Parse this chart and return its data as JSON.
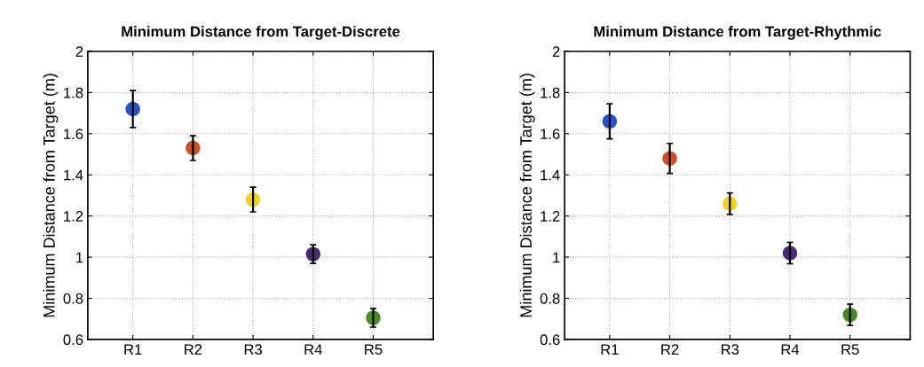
{
  "chart_data": [
    {
      "type": "scatter",
      "title": "Minimum Distance from Target-Discrete",
      "ylabel": "Minimum Distance from Target (m)",
      "categories": [
        "R1",
        "R2",
        "R3",
        "R4",
        "R5"
      ],
      "values": [
        1.72,
        1.53,
        1.28,
        1.015,
        0.705
      ],
      "errors": [
        0.09,
        0.06,
        0.06,
        0.045,
        0.045
      ],
      "colors": [
        "#2a50c0",
        "#c8502a",
        "#f2d22a",
        "#4a2a70",
        "#4a8a2a"
      ],
      "ylim": [
        0.6,
        2
      ],
      "yticks": [
        0.6,
        0.8,
        1,
        1.2,
        1.4,
        1.6,
        1.8,
        2
      ],
      "grid": true,
      "marker": "circle"
    },
    {
      "type": "scatter",
      "title": "Minimum Distance from Target-Rhythmic",
      "ylabel": "Minimum Distance from Target (m)",
      "categories": [
        "R1",
        "R2",
        "R3",
        "R4",
        "R5"
      ],
      "values": [
        1.66,
        1.48,
        1.26,
        1.02,
        0.72
      ],
      "errors": [
        0.085,
        0.073,
        0.052,
        0.052,
        0.052
      ],
      "colors": [
        "#2a50c0",
        "#c8502a",
        "#f2d22a",
        "#4a2a70",
        "#4a8a2a"
      ],
      "ylim": [
        0.6,
        2
      ],
      "yticks": [
        0.6,
        0.8,
        1,
        1.2,
        1.4,
        1.6,
        1.8,
        2
      ],
      "grid": true,
      "marker": "circle"
    }
  ]
}
